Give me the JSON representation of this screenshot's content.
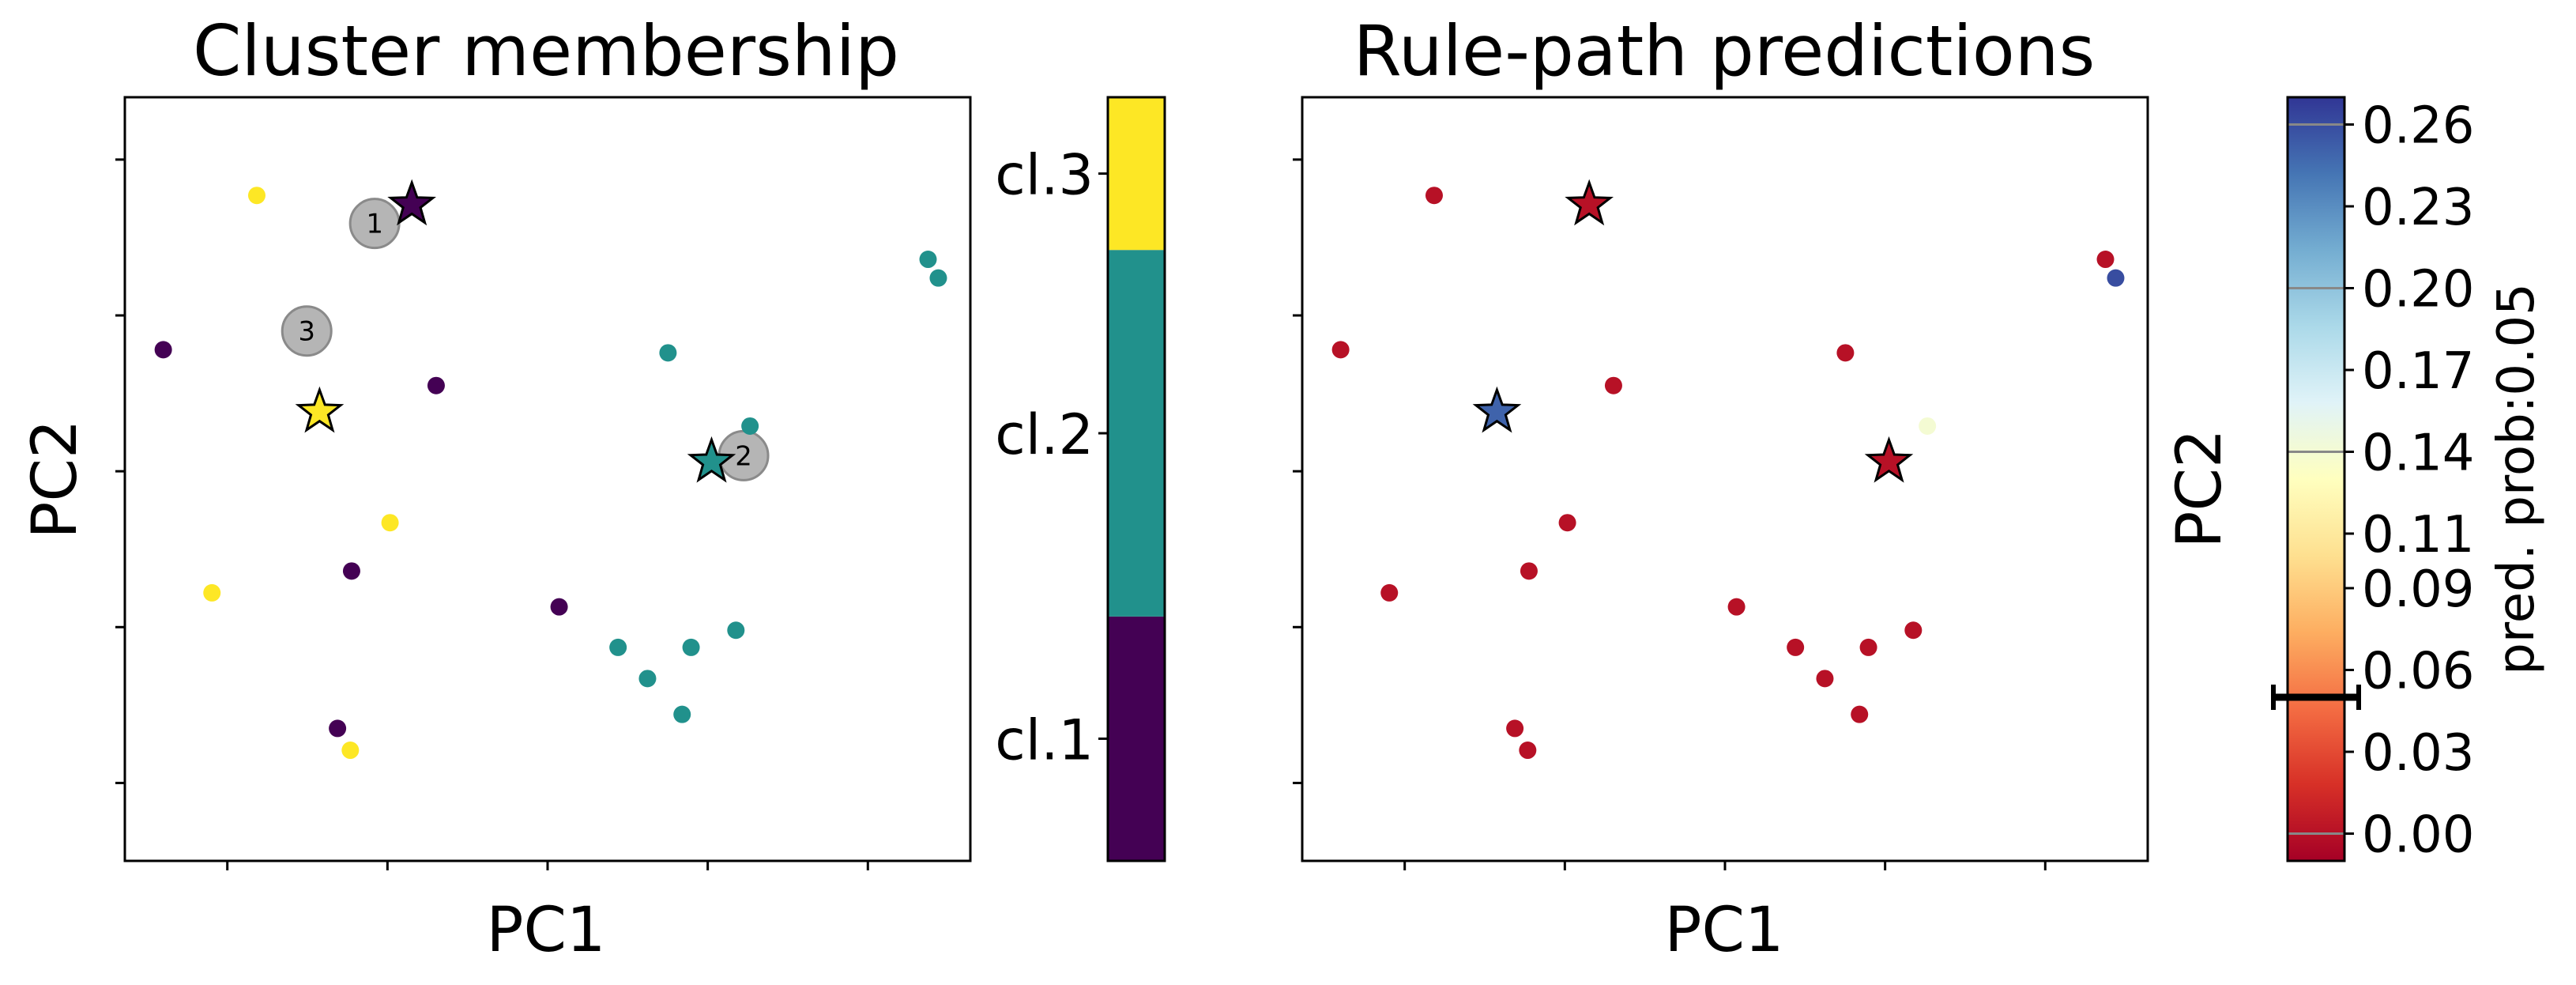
{
  "colors": {
    "cluster_1": "#440154",
    "cluster_2": "#21918c",
    "cluster_3": "#fde725",
    "annotation_circle": "#a8a8a8",
    "marker_edge": "#000000"
  },
  "chart_data": [
    {
      "type": "scatter",
      "title": "Cluster membership",
      "xlabel": "PC1",
      "ylabel": "PC2",
      "xlim": [
        -3.3,
        3.3
      ],
      "ylim": [
        -2.5,
        2.4
      ],
      "grid": false,
      "x_ticks": [
        -2.5,
        -1.25,
        0,
        1.25,
        2.5
      ],
      "y_ticks": [
        -2,
        -1,
        0,
        1,
        2
      ],
      "colorbar": {
        "type": "categorical",
        "labels": [
          "cl.1",
          "cl.2",
          "cl.3"
        ],
        "colors": [
          "#440154",
          "#21918c",
          "#fde725"
        ]
      },
      "points": [
        {
          "x": -2.27,
          "y": 1.77,
          "cluster": 3
        },
        {
          "x": -3.0,
          "y": 0.78,
          "cluster": 1
        },
        {
          "x": -2.62,
          "y": -0.78,
          "cluster": 3
        },
        {
          "x": -1.64,
          "y": -1.65,
          "cluster": 1
        },
        {
          "x": -1.54,
          "y": -1.79,
          "cluster": 3
        },
        {
          "x": -1.53,
          "y": -0.64,
          "cluster": 1
        },
        {
          "x": -1.23,
          "y": -0.33,
          "cluster": 3
        },
        {
          "x": -0.87,
          "y": 0.55,
          "cluster": 1
        },
        {
          "x": 0.09,
          "y": -0.87,
          "cluster": 1
        },
        {
          "x": 0.55,
          "y": -1.13,
          "cluster": 2
        },
        {
          "x": 0.78,
          "y": -1.33,
          "cluster": 2
        },
        {
          "x": 0.94,
          "y": 0.76,
          "cluster": 2
        },
        {
          "x": 1.05,
          "y": -1.56,
          "cluster": 2
        },
        {
          "x": 1.12,
          "y": -1.13,
          "cluster": 2
        },
        {
          "x": 1.47,
          "y": -1.02,
          "cluster": 2
        },
        {
          "x": 1.58,
          "y": 0.29,
          "cluster": 2
        },
        {
          "x": 2.97,
          "y": 1.36,
          "cluster": 2
        },
        {
          "x": 3.05,
          "y": 1.24,
          "cluster": 2
        }
      ],
      "stars": [
        {
          "x": -1.06,
          "y": 1.71,
          "cluster": 1
        },
        {
          "x": 1.28,
          "y": 0.06,
          "cluster": 2
        },
        {
          "x": -1.78,
          "y": 0.38,
          "cluster": 3
        }
      ],
      "annotations": [
        {
          "label": "1",
          "x": -1.35,
          "y": 1.59
        },
        {
          "label": "2",
          "x": 1.53,
          "y": 0.1
        },
        {
          "label": "3",
          "x": -1.88,
          "y": 0.9
        }
      ]
    },
    {
      "type": "scatter",
      "title": "Rule-path predictions",
      "xlabel": "PC1",
      "ylabel": "PC2",
      "xlim": [
        -3.3,
        3.3
      ],
      "ylim": [
        -2.5,
        2.4
      ],
      "grid": false,
      "x_ticks": [
        -2.5,
        -1.25,
        0,
        1.25,
        2.5
      ],
      "y_ticks": [
        -2,
        -1,
        0,
        1,
        2
      ],
      "colorbar": {
        "type": "continuous",
        "cmap": "RdYlBu",
        "range": [
          -0.01,
          0.27
        ],
        "ticks": [
          "0.00",
          "0.03",
          "0.06",
          "0.09",
          "0.11",
          "0.14",
          "0.17",
          "0.20",
          "0.23",
          "0.26"
        ],
        "label": "pred. prob:0.05",
        "marker_value": 0.05
      },
      "points": [
        {
          "x": -2.27,
          "y": 1.77,
          "prob": 0.0
        },
        {
          "x": -3.0,
          "y": 0.78,
          "prob": 0.0
        },
        {
          "x": -2.62,
          "y": -0.78,
          "prob": 0.0
        },
        {
          "x": -1.64,
          "y": -1.65,
          "prob": 0.0
        },
        {
          "x": -1.54,
          "y": -1.79,
          "prob": 0.0
        },
        {
          "x": -1.53,
          "y": -0.64,
          "prob": 0.0
        },
        {
          "x": -1.23,
          "y": -0.33,
          "prob": 0.0
        },
        {
          "x": -0.87,
          "y": 0.55,
          "prob": 0.0
        },
        {
          "x": 0.09,
          "y": -0.87,
          "prob": 0.0
        },
        {
          "x": 0.55,
          "y": -1.13,
          "prob": 0.0
        },
        {
          "x": 0.78,
          "y": -1.33,
          "prob": 0.0
        },
        {
          "x": 0.94,
          "y": 0.76,
          "prob": 0.0
        },
        {
          "x": 1.05,
          "y": -1.56,
          "prob": 0.0
        },
        {
          "x": 1.12,
          "y": -1.13,
          "prob": 0.0
        },
        {
          "x": 1.47,
          "y": -1.02,
          "prob": 0.0
        },
        {
          "x": 1.58,
          "y": 0.29,
          "prob": 0.14
        },
        {
          "x": 2.97,
          "y": 1.36,
          "prob": 0.0
        },
        {
          "x": 3.05,
          "y": 1.24,
          "prob": 0.26
        }
      ],
      "stars": [
        {
          "x": -1.06,
          "y": 1.71,
          "prob": 0.0
        },
        {
          "x": 1.28,
          "y": 0.06,
          "prob": 0.0
        },
        {
          "x": -1.78,
          "y": 0.38,
          "prob": 0.25
        }
      ]
    }
  ]
}
